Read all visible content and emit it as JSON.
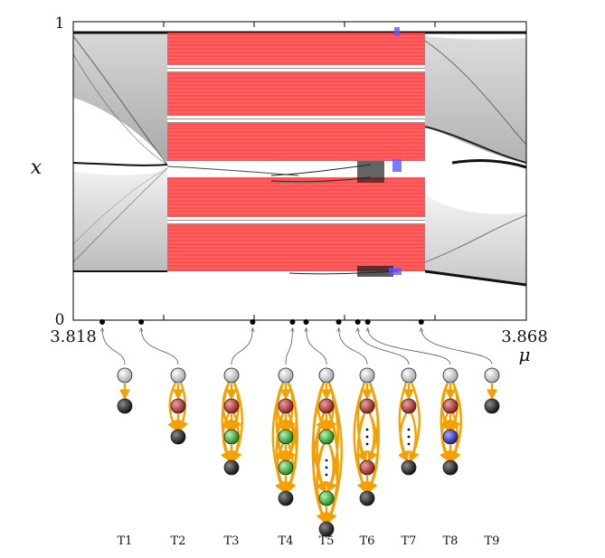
{
  "plot": {
    "y_axis_label": "x",
    "x_axis_label": "μ",
    "y_top_tick": "1",
    "y_bottom_tick": "0",
    "x_min_tick": "3.818",
    "x_max_tick": "3.868",
    "region_colors": {
      "background": "#111111",
      "red_window": "#ff2a2a",
      "blue_window": "#5a5aff"
    }
  },
  "graphs": [
    {
      "label": "T1",
      "mu": 3.8212,
      "nodes": [
        "white",
        "black"
      ]
    },
    {
      "label": "T2",
      "mu": 3.8255,
      "nodes": [
        "white",
        "red",
        "black"
      ]
    },
    {
      "label": "T3",
      "mu": 3.8378,
      "nodes": [
        "white",
        "red",
        "green",
        "black"
      ]
    },
    {
      "label": "T4",
      "mu": 3.8422,
      "nodes": [
        "white",
        "red",
        "green",
        "green",
        "black"
      ]
    },
    {
      "label": "T5",
      "mu": 3.8437,
      "nodes": [
        "white",
        "red",
        "green",
        "dots",
        "green",
        "black"
      ]
    },
    {
      "label": "T6",
      "mu": 3.8473,
      "nodes": [
        "white",
        "red",
        "dots",
        "red",
        "black"
      ]
    },
    {
      "label": "T7",
      "mu": 3.8494,
      "nodes": [
        "white",
        "red",
        "dots",
        "black"
      ]
    },
    {
      "label": "T8",
      "mu": 3.8505,
      "nodes": [
        "white",
        "red",
        "blue",
        "black"
      ]
    },
    {
      "label": "T9",
      "mu": 3.8564,
      "nodes": [
        "white",
        "black"
      ]
    }
  ],
  "node_colors": {
    "white": "#e6e6e6",
    "red": "#b23a3a",
    "green": "#3fbf3f",
    "blue": "#3c3cc8",
    "black": "#2e2e2e"
  },
  "arrow_color": "#f5a000"
}
